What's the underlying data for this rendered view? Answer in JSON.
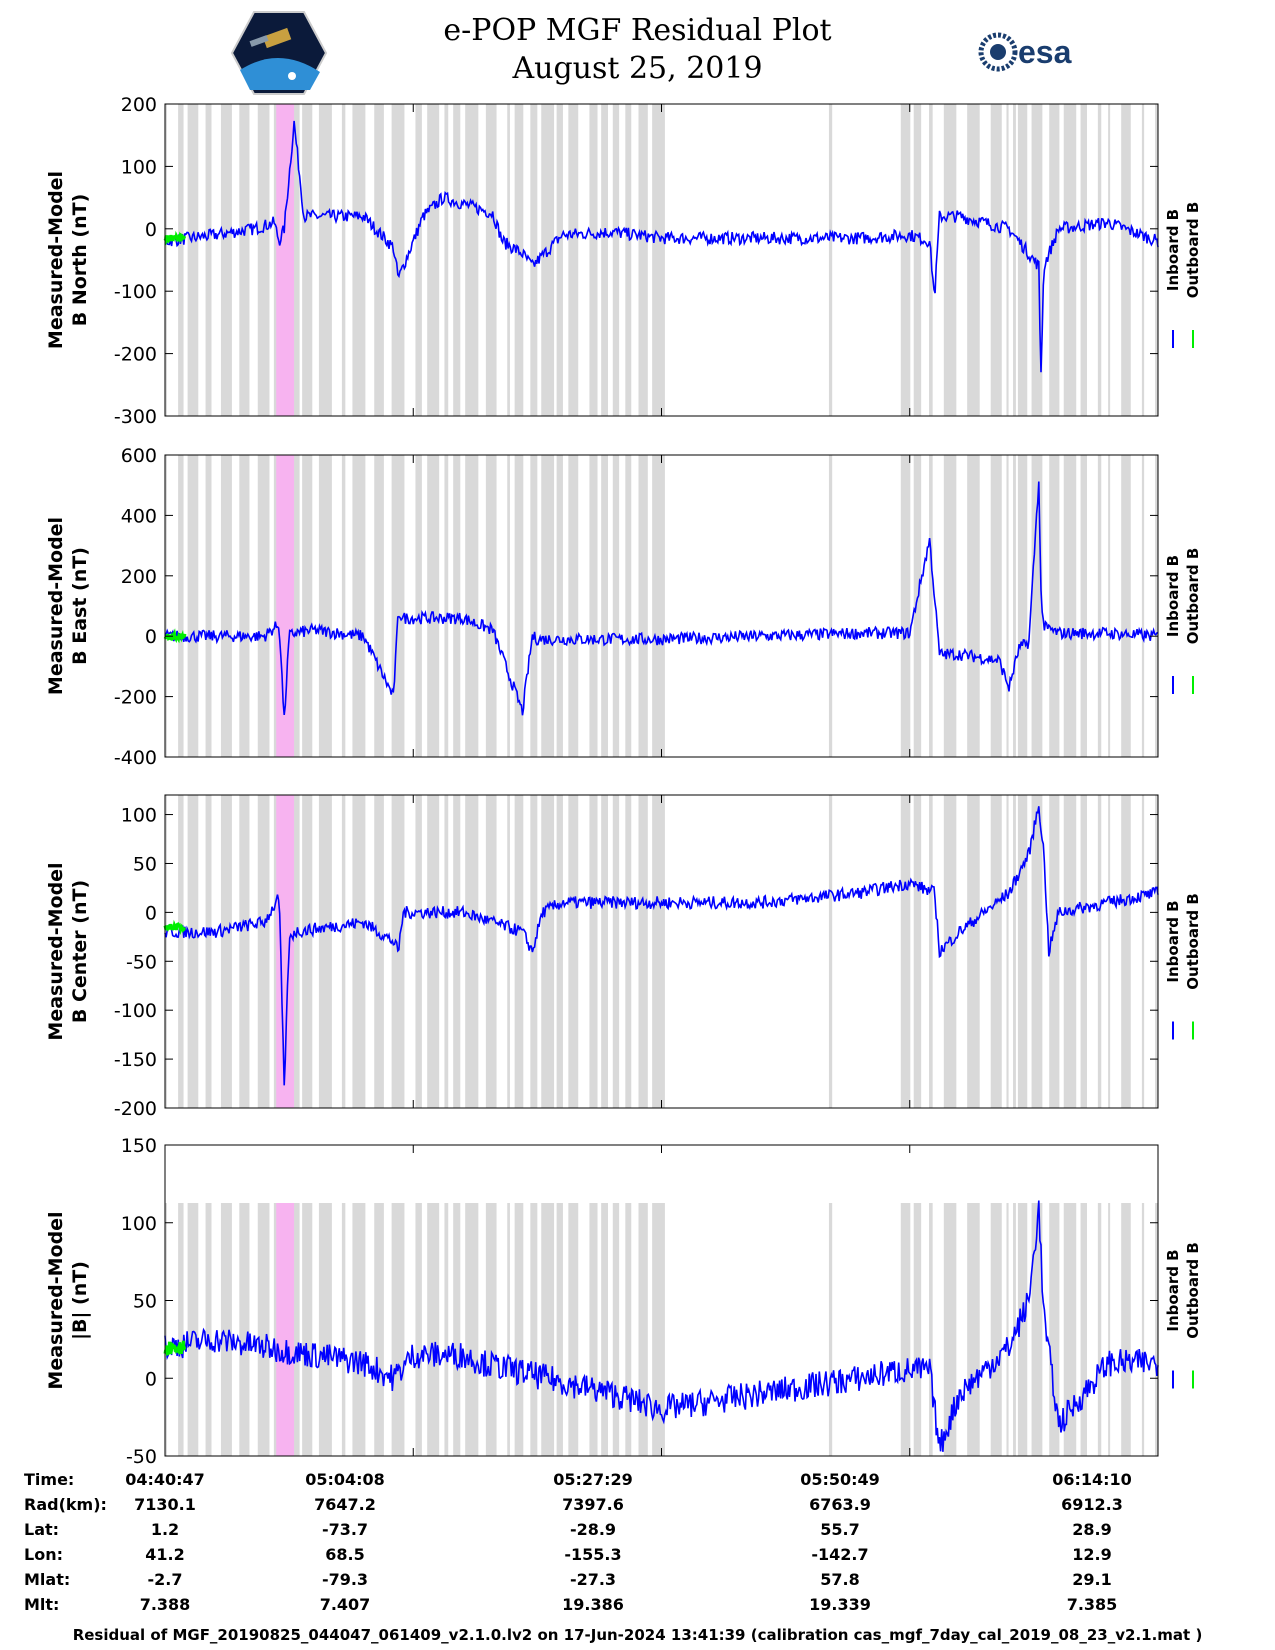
{
  "title": {
    "line1": "e-POP MGF Residual Plot",
    "line2": "August 25, 2019"
  },
  "logos": {
    "left": "cassiope-mission-logo",
    "right_text": "esa"
  },
  "colors": {
    "inboard": "#0000ff",
    "outboard": "#00ee00",
    "gap": "#d9d9d9",
    "highlight": "#f7b3f0"
  },
  "legend": {
    "inboard": "Inboard B",
    "outboard": "Outboard B"
  },
  "chart_data": [
    {
      "type": "line",
      "id": "bnorth",
      "ylabel": [
        "Measured-Model",
        "B North (nT)"
      ],
      "ylim": [
        -300,
        200
      ],
      "yticks": [
        -300,
        -200,
        -100,
        0,
        100,
        200
      ],
      "xlim": [
        0,
        1
      ],
      "series": [
        {
          "name": "Inboard B",
          "x": [
            0.0,
            0.05,
            0.09,
            0.11,
            0.115,
            0.12,
            0.13,
            0.14,
            0.2,
            0.23,
            0.235,
            0.26,
            0.28,
            0.3,
            0.33,
            0.34,
            0.36,
            0.37,
            0.4,
            0.45,
            0.5,
            0.6,
            0.7,
            0.75,
            0.77,
            0.775,
            0.78,
            0.8,
            0.85,
            0.88,
            0.882,
            0.885,
            0.9,
            0.95,
            1.0
          ],
          "y": [
            -20,
            -10,
            0,
            10,
            -20,
            0,
            170,
            20,
            20,
            -30,
            -80,
            20,
            50,
            40,
            25,
            -20,
            -40,
            -60,
            -10,
            -5,
            -15,
            -15,
            -15,
            -10,
            -20,
            -110,
            20,
            20,
            0,
            -60,
            -240,
            -60,
            0,
            10,
            -20
          ]
        },
        {
          "name": "Outboard B",
          "x": [
            0.0,
            0.02
          ],
          "y": [
            -15,
            -15
          ]
        }
      ]
    },
    {
      "type": "line",
      "id": "beast",
      "ylabel": [
        "Measured-Model",
        "B East (nT)"
      ],
      "ylim": [
        -400,
        600
      ],
      "yticks": [
        -400,
        -200,
        0,
        200,
        400,
        600
      ],
      "xlim": [
        0,
        1
      ],
      "series": [
        {
          "name": "Inboard B",
          "x": [
            0.0,
            0.05,
            0.1,
            0.115,
            0.12,
            0.125,
            0.13,
            0.15,
            0.2,
            0.23,
            0.235,
            0.24,
            0.3,
            0.33,
            0.36,
            0.37,
            0.375,
            0.38,
            0.4,
            0.5,
            0.6,
            0.7,
            0.75,
            0.77,
            0.78,
            0.8,
            0.82,
            0.84,
            0.85,
            0.86,
            0.87,
            0.88,
            0.882,
            0.885,
            0.9,
            0.95,
            1.0
          ],
          "y": [
            0,
            0,
            0,
            40,
            -280,
            0,
            10,
            20,
            0,
            -200,
            80,
            60,
            60,
            20,
            -250,
            0,
            -10,
            -10,
            -10,
            -10,
            0,
            10,
            10,
            320,
            -60,
            -60,
            -70,
            -80,
            -170,
            -40,
            -20,
            520,
            150,
            30,
            10,
            10,
            0
          ]
        },
        {
          "name": "Outboard B",
          "x": [
            0.0,
            0.02
          ],
          "y": [
            0,
            0
          ]
        }
      ]
    },
    {
      "type": "line",
      "id": "bcenter",
      "ylabel": [
        "Measured-Model",
        "B Center (nT)"
      ],
      "ylim": [
        -200,
        120
      ],
      "yticks": [
        -200,
        -150,
        -100,
        -50,
        0,
        50,
        100
      ],
      "xlim": [
        0,
        1
      ],
      "series": [
        {
          "name": "Inboard B",
          "x": [
            0.0,
            0.05,
            0.1,
            0.115,
            0.12,
            0.125,
            0.13,
            0.2,
            0.23,
            0.235,
            0.24,
            0.3,
            0.36,
            0.37,
            0.38,
            0.4,
            0.5,
            0.6,
            0.7,
            0.75,
            0.775,
            0.78,
            0.8,
            0.85,
            0.87,
            0.88,
            0.885,
            0.89,
            0.9,
            0.95,
            1.0
          ],
          "y": [
            -20,
            -20,
            -10,
            15,
            -180,
            -30,
            -20,
            -10,
            -30,
            -40,
            0,
            0,
            -20,
            -40,
            0,
            10,
            10,
            10,
            20,
            30,
            20,
            -40,
            -20,
            20,
            60,
            110,
            60,
            -40,
            0,
            10,
            20
          ]
        },
        {
          "name": "Outboard B",
          "x": [
            0.0,
            0.02
          ],
          "y": [
            -15,
            -15
          ]
        }
      ]
    },
    {
      "type": "line",
      "id": "bmag",
      "ylabel": [
        "Measured-Model",
        "|B| (nT)"
      ],
      "ylim": [
        -50,
        150
      ],
      "yticks": [
        -50,
        0,
        50,
        100,
        150
      ],
      "xlim": [
        0,
        1
      ],
      "series": [
        {
          "name": "Inboard B",
          "x": [
            0.0,
            0.05,
            0.1,
            0.15,
            0.2,
            0.23,
            0.25,
            0.3,
            0.32,
            0.45,
            0.5,
            0.6,
            0.7,
            0.74,
            0.77,
            0.78,
            0.8,
            0.85,
            0.87,
            0.88,
            0.885,
            0.9,
            0.95,
            1.0
          ],
          "y": [
            20,
            25,
            20,
            15,
            10,
            0,
            15,
            15,
            10,
            -10,
            -20,
            -10,
            0,
            5,
            5,
            -45,
            -10,
            20,
            50,
            110,
            40,
            -30,
            10,
            10
          ]
        },
        {
          "name": "Outboard B",
          "x": [
            0.0,
            0.02
          ],
          "y": [
            20,
            20
          ]
        }
      ]
    }
  ],
  "xaxis": {
    "time_label": "Time:",
    "rows": [
      {
        "label": "Time:",
        "values": [
          "04:40:47",
          "05:04:08",
          "05:27:29",
          "05:50:49",
          "06:14:10"
        ]
      },
      {
        "label": "Rad(km):",
        "values": [
          "7130.1",
          "7647.2",
          "7397.6",
          "6763.9",
          "6912.3"
        ]
      },
      {
        "label": "Lat:",
        "values": [
          "1.2",
          "-73.7",
          "-28.9",
          "55.7",
          "28.9"
        ]
      },
      {
        "label": "Lon:",
        "values": [
          "41.2",
          "68.5",
          "-155.3",
          "-142.7",
          "12.9"
        ]
      },
      {
        "label": "Mlat:",
        "values": [
          "-2.7",
          "-79.3",
          "-27.3",
          "57.8",
          "29.1"
        ]
      },
      {
        "label": "Mlt:",
        "values": [
          "7.388",
          "7.407",
          "19.386",
          "19.339",
          "7.385"
        ]
      }
    ]
  },
  "footer": "Residual of MGF_20190825_044047_061409_v2.1.0.lv2 on 17-Jun-2024 13:41:39 (calibration cas_mgf_7day_cal_2019_08_23_v2.1.mat )"
}
